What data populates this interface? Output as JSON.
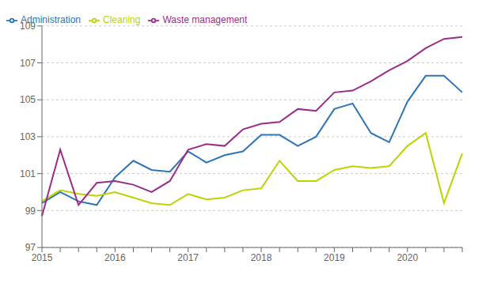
{
  "chart_data": {
    "type": "line",
    "categories": [
      "2015",
      null,
      null,
      null,
      "2016",
      null,
      null,
      null,
      "2017",
      null,
      null,
      null,
      "2018",
      null,
      null,
      null,
      "2019",
      null,
      null,
      null,
      "2020",
      null,
      null,
      null
    ],
    "series": [
      {
        "name": "Administration",
        "color": "#2e75b6",
        "values": [
          99.4,
          100.0,
          99.5,
          99.3,
          100.8,
          101.7,
          101.2,
          101.1,
          102.2,
          101.6,
          102.0,
          102.2,
          103.1,
          103.1,
          102.5,
          103.0,
          104.5,
          104.8,
          103.2,
          102.7,
          104.9,
          106.3,
          106.3,
          105.4
        ]
      },
      {
        "name": "Cleaning",
        "color": "#bdd400",
        "values": [
          99.5,
          100.1,
          99.9,
          99.8,
          100.0,
          99.7,
          99.4,
          99.3,
          99.9,
          99.6,
          99.7,
          100.1,
          100.2,
          101.7,
          100.6,
          100.6,
          101.2,
          101.4,
          101.3,
          101.4,
          102.5,
          103.2,
          99.4,
          102.1
        ]
      },
      {
        "name": "Waste management",
        "color": "#9b2c8a",
        "values": [
          98.7,
          102.3,
          99.3,
          100.5,
          100.6,
          100.4,
          100.0,
          100.6,
          102.3,
          102.6,
          102.5,
          103.4,
          103.7,
          103.8,
          104.5,
          104.4,
          105.4,
          105.5,
          106.0,
          106.6,
          107.1,
          107.8,
          108.3,
          108.4
        ]
      }
    ],
    "ylim": [
      97,
      109
    ],
    "yticks": [
      97,
      99,
      101,
      103,
      105,
      107,
      109
    ],
    "grid": true,
    "legend": "upper left"
  }
}
